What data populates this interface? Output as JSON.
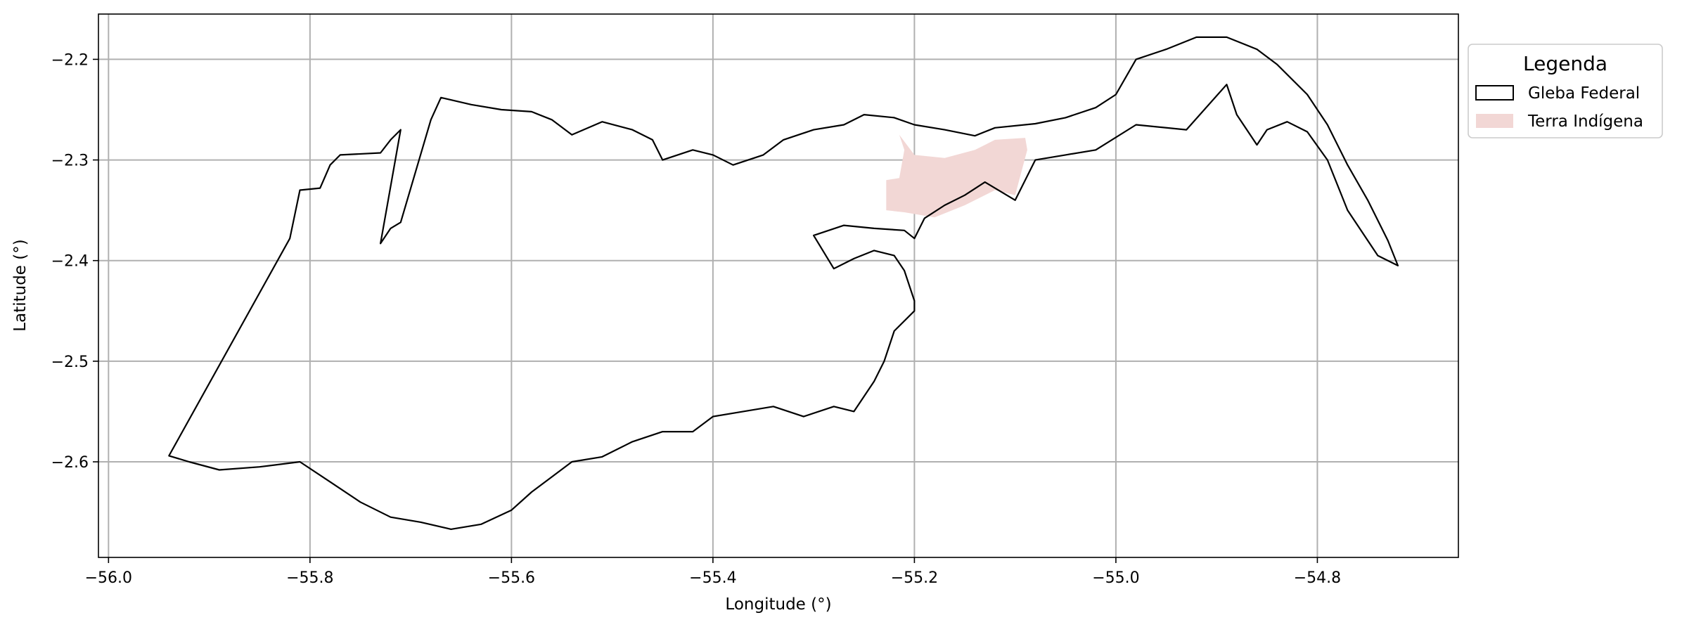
{
  "map": {
    "xlabel": "Longitude (°)",
    "ylabel": "Latitude (°)",
    "xlim": [
      -56.01,
      -54.66
    ],
    "ylim": [
      -2.695,
      -2.155
    ],
    "x_ticks": [
      -56.0,
      -55.8,
      -55.6,
      -55.4,
      -55.2,
      -55.0,
      -54.8
    ],
    "x_tick_labels": [
      "−56.0",
      "−55.8",
      "−55.6",
      "−55.4",
      "−55.2",
      "−55.0",
      "−54.8"
    ],
    "y_ticks": [
      -2.2,
      -2.3,
      -2.4,
      -2.5,
      -2.6
    ],
    "y_tick_labels": [
      "−2.2",
      "−2.3",
      "−2.4",
      "−2.5",
      "−2.6"
    ],
    "grid": true
  },
  "legend": {
    "title": "Legenda",
    "placement": "outside-right-top",
    "items": [
      {
        "label": "Gleba Federal",
        "style": "outline",
        "color": "#000000"
      },
      {
        "label": "Terra Indígena",
        "style": "fill",
        "color": "#f2d7d5"
      }
    ]
  },
  "layers": {
    "gleba_federal": {
      "name": "Gleba Federal",
      "stroke_color": "#000000",
      "outline": [
        [
          -55.94,
          -2.594
        ],
        [
          -55.82,
          -2.378
        ],
        [
          -55.81,
          -2.33
        ],
        [
          -55.79,
          -2.328
        ],
        [
          -55.78,
          -2.305
        ],
        [
          -55.77,
          -2.295
        ],
        [
          -55.73,
          -2.293
        ],
        [
          -55.72,
          -2.28
        ],
        [
          -55.71,
          -2.27
        ],
        [
          -55.73,
          -2.383
        ],
        [
          -55.72,
          -2.368
        ],
        [
          -55.71,
          -2.362
        ],
        [
          -55.68,
          -2.26
        ],
        [
          -55.67,
          -2.238
        ],
        [
          -55.64,
          -2.245
        ],
        [
          -55.61,
          -2.25
        ],
        [
          -55.58,
          -2.252
        ],
        [
          -55.56,
          -2.26
        ],
        [
          -55.54,
          -2.275
        ],
        [
          -55.51,
          -2.262
        ],
        [
          -55.48,
          -2.27
        ],
        [
          -55.46,
          -2.28
        ],
        [
          -55.45,
          -2.3
        ],
        [
          -55.42,
          -2.29
        ],
        [
          -55.4,
          -2.295
        ],
        [
          -55.38,
          -2.305
        ],
        [
          -55.35,
          -2.295
        ],
        [
          -55.33,
          -2.28
        ],
        [
          -55.3,
          -2.27
        ],
        [
          -55.27,
          -2.265
        ],
        [
          -55.25,
          -2.255
        ],
        [
          -55.22,
          -2.258
        ],
        [
          -55.2,
          -2.265
        ],
        [
          -55.17,
          -2.27
        ],
        [
          -55.14,
          -2.276
        ],
        [
          -55.12,
          -2.268
        ],
        [
          -55.08,
          -2.264
        ],
        [
          -55.05,
          -2.258
        ],
        [
          -55.02,
          -2.248
        ],
        [
          -55.0,
          -2.235
        ],
        [
          -54.98,
          -2.2
        ],
        [
          -54.95,
          -2.19
        ],
        [
          -54.92,
          -2.178
        ],
        [
          -54.89,
          -2.178
        ],
        [
          -54.86,
          -2.19
        ],
        [
          -54.84,
          -2.205
        ],
        [
          -54.81,
          -2.235
        ],
        [
          -54.79,
          -2.265
        ],
        [
          -54.77,
          -2.305
        ],
        [
          -54.75,
          -2.34
        ],
        [
          -54.73,
          -2.38
        ],
        [
          -54.72,
          -2.405
        ],
        [
          -54.74,
          -2.395
        ],
        [
          -54.77,
          -2.35
        ],
        [
          -54.79,
          -2.3
        ],
        [
          -54.81,
          -2.272
        ],
        [
          -54.83,
          -2.262
        ],
        [
          -54.85,
          -2.27
        ],
        [
          -54.86,
          -2.285
        ],
        [
          -54.88,
          -2.255
        ],
        [
          -54.89,
          -2.225
        ],
        [
          -54.93,
          -2.27
        ],
        [
          -54.98,
          -2.265
        ],
        [
          -55.02,
          -2.29
        ],
        [
          -55.05,
          -2.295
        ],
        [
          -55.08,
          -2.3
        ],
        [
          -55.1,
          -2.34
        ],
        [
          -55.13,
          -2.322
        ],
        [
          -55.15,
          -2.335
        ],
        [
          -55.17,
          -2.345
        ],
        [
          -55.19,
          -2.358
        ],
        [
          -55.2,
          -2.378
        ],
        [
          -55.21,
          -2.37
        ],
        [
          -55.24,
          -2.368
        ],
        [
          -55.27,
          -2.365
        ],
        [
          -55.3,
          -2.375
        ],
        [
          -55.28,
          -2.408
        ],
        [
          -55.26,
          -2.398
        ],
        [
          -55.24,
          -2.39
        ],
        [
          -55.22,
          -2.395
        ],
        [
          -55.21,
          -2.41
        ],
        [
          -55.2,
          -2.44
        ],
        [
          -55.2,
          -2.45
        ],
        [
          -55.22,
          -2.47
        ],
        [
          -55.23,
          -2.5
        ],
        [
          -55.24,
          -2.52
        ],
        [
          -55.26,
          -2.55
        ],
        [
          -55.28,
          -2.545
        ],
        [
          -55.31,
          -2.555
        ],
        [
          -55.34,
          -2.545
        ],
        [
          -55.37,
          -2.55
        ],
        [
          -55.4,
          -2.555
        ],
        [
          -55.42,
          -2.57
        ],
        [
          -55.45,
          -2.57
        ],
        [
          -55.48,
          -2.58
        ],
        [
          -55.51,
          -2.595
        ],
        [
          -55.54,
          -2.6
        ],
        [
          -55.56,
          -2.615
        ],
        [
          -55.58,
          -2.63
        ],
        [
          -55.6,
          -2.648
        ],
        [
          -55.63,
          -2.662
        ],
        [
          -55.66,
          -2.667
        ],
        [
          -55.69,
          -2.66
        ],
        [
          -55.72,
          -2.655
        ],
        [
          -55.75,
          -2.64
        ],
        [
          -55.78,
          -2.62
        ],
        [
          -55.81,
          -2.6
        ],
        [
          -55.85,
          -2.605
        ],
        [
          -55.89,
          -2.608
        ],
        [
          -55.92,
          -2.6
        ],
        [
          -55.94,
          -2.594
        ]
      ]
    },
    "terra_indigena": {
      "name": "Terra Indígena",
      "fill_color": "#f2d7d5",
      "polygon": [
        [
          -55.228,
          -2.32
        ],
        [
          -55.215,
          -2.318
        ],
        [
          -55.21,
          -2.29
        ],
        [
          -55.215,
          -2.275
        ],
        [
          -55.2,
          -2.295
        ],
        [
          -55.17,
          -2.298
        ],
        [
          -55.14,
          -2.29
        ],
        [
          -55.12,
          -2.28
        ],
        [
          -55.09,
          -2.278
        ],
        [
          -55.088,
          -2.29
        ],
        [
          -55.1,
          -2.335
        ],
        [
          -55.12,
          -2.33
        ],
        [
          -55.15,
          -2.345
        ],
        [
          -55.18,
          -2.357
        ],
        [
          -55.21,
          -2.352
        ],
        [
          -55.228,
          -2.35
        ],
        [
          -55.228,
          -2.32
        ]
      ]
    }
  }
}
